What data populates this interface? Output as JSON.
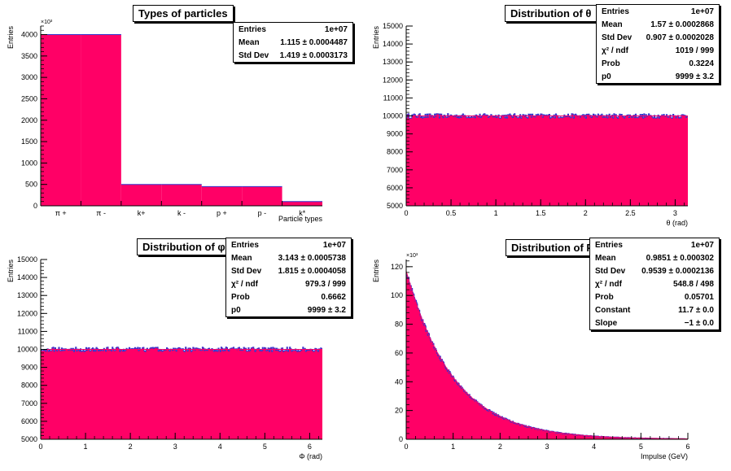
{
  "colors": {
    "fill": "#ff0066",
    "line": "#3333cc",
    "axis": "#000000"
  },
  "chart_data": [
    {
      "type": "bar",
      "title": "Types of particles",
      "xlabel": "Particle types",
      "ylabel": "Entries",
      "exponent": "×10³",
      "categories": [
        "π +",
        "π -",
        "k+",
        "k -",
        "p +",
        "p -",
        "k*"
      ],
      "values": [
        4000,
        4000,
        500,
        500,
        450,
        450,
        100
      ],
      "ylim": [
        0,
        4200
      ],
      "yticks": [
        0,
        500,
        1000,
        1500,
        2000,
        2500,
        3000,
        3500,
        4000
      ],
      "stats": [
        {
          "label": "Entries",
          "value": "1e+07"
        },
        {
          "label": "Mean",
          "value": "1.115 ± 0.0004487"
        },
        {
          "label": "Std Dev",
          "value": "1.419 ± 0.0003173"
        }
      ]
    },
    {
      "type": "histogram-flat",
      "title": "Distribution of θ",
      "xlabel": "θ (rad)",
      "ylabel": "Entries",
      "xlim": [
        0,
        3.1416
      ],
      "ylim": [
        5000,
        15000
      ],
      "xticks": [
        0,
        0.5,
        1,
        1.5,
        2,
        2.5,
        3
      ],
      "yticks": [
        5000,
        6000,
        7000,
        8000,
        9000,
        10000,
        11000,
        12000,
        13000,
        14000,
        15000
      ],
      "level": 10000,
      "fit": 9999,
      "stats": [
        {
          "label": "Entries",
          "value": "1e+07"
        },
        {
          "label": "Mean",
          "value": "1.57 ± 0.0002868"
        },
        {
          "label": "Std Dev",
          "value": "0.907 ± 0.0002028"
        },
        {
          "label": "χ² / ndf",
          "value": "1019 / 999"
        },
        {
          "label": "Prob",
          "value": "0.3224"
        },
        {
          "label": "p0",
          "value": "9999 ± 3.2"
        }
      ]
    },
    {
      "type": "histogram-flat",
      "title": "Distribution of φ",
      "xlabel": "Φ (rad)",
      "ylabel": "Entries",
      "xlim": [
        0,
        6.2832
      ],
      "ylim": [
        5000,
        15000
      ],
      "xticks": [
        0,
        1,
        2,
        3,
        4,
        5,
        6
      ],
      "yticks": [
        5000,
        6000,
        7000,
        8000,
        9000,
        10000,
        11000,
        12000,
        13000,
        14000,
        15000
      ],
      "level": 10000,
      "fit": 9999,
      "stats": [
        {
          "label": "Entries",
          "value": "1e+07"
        },
        {
          "label": "Mean",
          "value": "3.143 ± 0.0005738"
        },
        {
          "label": "Std Dev",
          "value": "1.815 ± 0.0004058"
        },
        {
          "label": "χ² / ndf",
          "value": "979.3 / 999"
        },
        {
          "label": "Prob",
          "value": "0.6662"
        },
        {
          "label": "p0",
          "value": "9999 ± 3.2"
        }
      ]
    },
    {
      "type": "histogram-exp",
      "title": "Distribution of P",
      "xlabel": "Impulse (GeV)",
      "ylabel": "Entries",
      "exponent": "×10³",
      "xlim": [
        0,
        6
      ],
      "ylim": [
        0,
        125
      ],
      "xticks": [
        0,
        1,
        2,
        3,
        4,
        5,
        6
      ],
      "yticks": [
        0,
        20,
        40,
        60,
        80,
        100,
        120
      ],
      "amplitude": 117,
      "slope": -1,
      "stats": [
        {
          "label": "Entries",
          "value": "1e+07"
        },
        {
          "label": "Mean",
          "value": "0.9851 ± 0.000302"
        },
        {
          "label": "Std Dev",
          "value": "0.9539 ± 0.0002136"
        },
        {
          "label": "χ² / ndf",
          "value": "548.8 / 498"
        },
        {
          "label": "Prob",
          "value": "0.05701"
        },
        {
          "label": "Constant",
          "value": "11.7 ± 0.0"
        },
        {
          "label": "Slope",
          "value": "−1 ± 0.0"
        }
      ]
    }
  ]
}
